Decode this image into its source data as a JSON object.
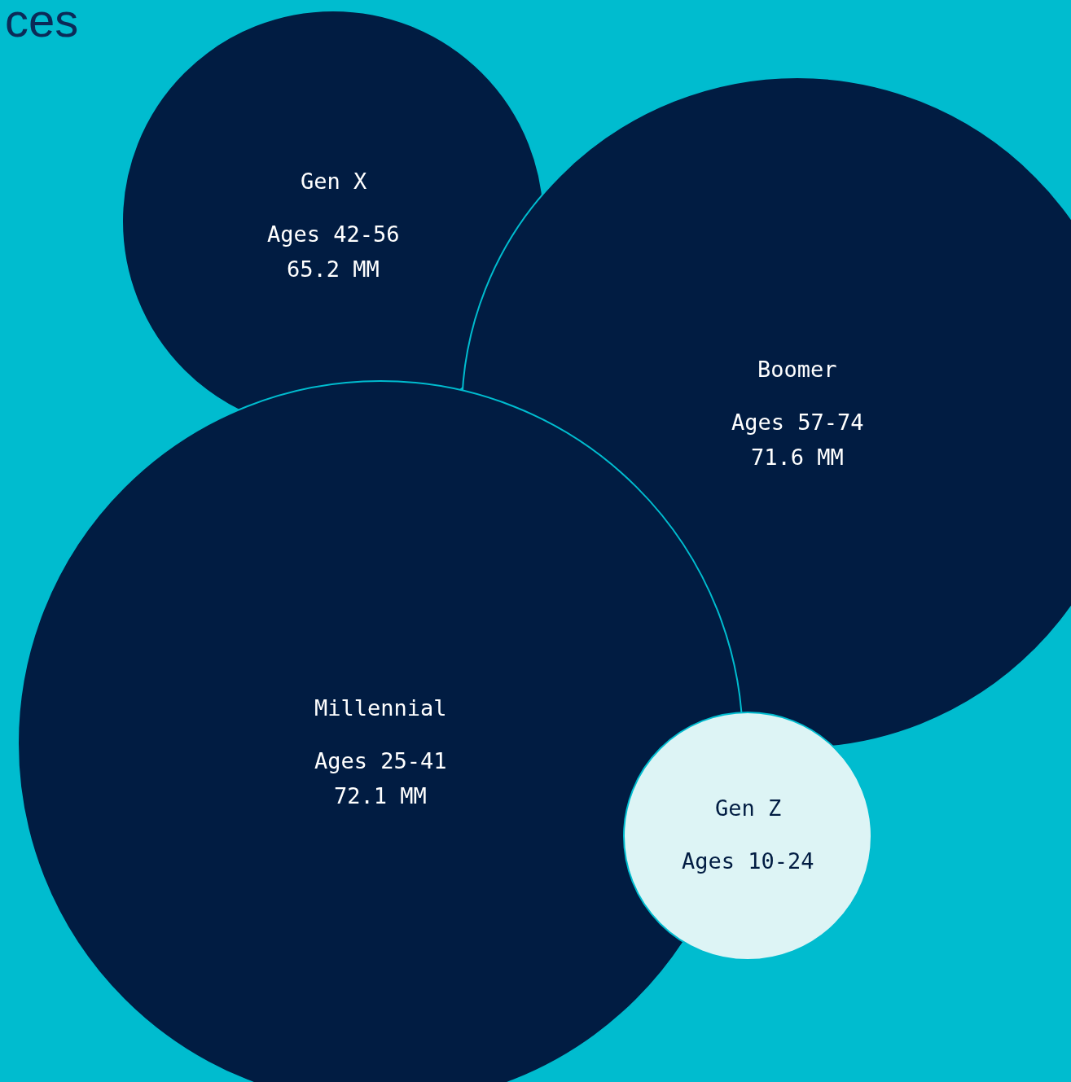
{
  "chart_data": {
    "type": "other",
    "title": "ces",
    "categories": [
      "Gen X",
      "Boomer",
      "Millennial",
      "Gen Z"
    ],
    "values": [
      65.2,
      71.6,
      72.1,
      null
    ],
    "value_labels": [
      "65.2 MM",
      "71.6 MM",
      "72.1 MM",
      null
    ],
    "annotations": [
      "Ages 42-56",
      "Ages 57-74",
      "Ages 25-41",
      "Ages 10-24"
    ],
    "colors": [
      "#011c42",
      "#011c42",
      "#011c42",
      "#ddf4f5"
    ]
  }
}
